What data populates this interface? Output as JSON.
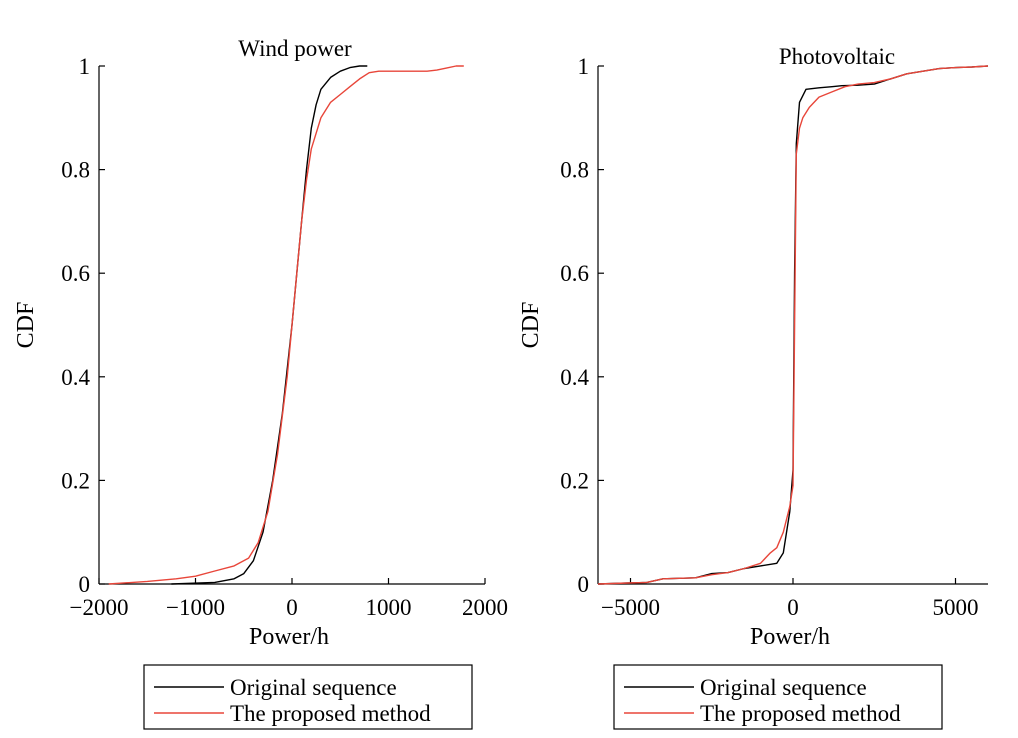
{
  "chart_data": [
    {
      "type": "line",
      "title": "Wind power",
      "xlabel": "Power/h",
      "ylabel": "CDF",
      "xlim": [
        -2000,
        2000
      ],
      "ylim": [
        0,
        1
      ],
      "xticks": [
        -2000,
        -1000,
        0,
        1000,
        2000
      ],
      "xtick_labels": [
        "−2000",
        "−1000",
        "0",
        "1000",
        "2000"
      ],
      "yticks": [
        0,
        0.2,
        0.4,
        0.6,
        0.8,
        1
      ],
      "ytick_labels": [
        "0",
        "0.2",
        "0.4",
        "0.6",
        "0.8",
        "1"
      ],
      "grid": false,
      "legend_position": "bottom",
      "series": [
        {
          "name": "Original sequence",
          "color": "#000000",
          "x": [
            -1250,
            -800,
            -600,
            -500,
            -400,
            -300,
            -200,
            -100,
            0,
            50,
            100,
            150,
            200,
            250,
            300,
            400,
            500,
            600,
            700,
            780
          ],
          "y": [
            0,
            0.003,
            0.01,
            0.02,
            0.045,
            0.1,
            0.2,
            0.33,
            0.5,
            0.6,
            0.7,
            0.8,
            0.88,
            0.925,
            0.955,
            0.978,
            0.99,
            0.997,
            1,
            1
          ]
        },
        {
          "name": "The proposed method",
          "color": "#e8463a",
          "x": [
            -1900,
            -1500,
            -1200,
            -1000,
            -800,
            -600,
            -450,
            -350,
            -250,
            -150,
            -50,
            0,
            50,
            100,
            150,
            200,
            300,
            400,
            500,
            600,
            700,
            800,
            900,
            1000,
            1200,
            1400,
            1500,
            1600,
            1700,
            1780
          ],
          "y": [
            0,
            0.005,
            0.01,
            0.015,
            0.025,
            0.035,
            0.05,
            0.08,
            0.14,
            0.25,
            0.4,
            0.5,
            0.6,
            0.7,
            0.78,
            0.84,
            0.9,
            0.93,
            0.945,
            0.96,
            0.975,
            0.987,
            0.99,
            0.99,
            0.99,
            0.99,
            0.992,
            0.996,
            1,
            1
          ]
        }
      ]
    },
    {
      "type": "line",
      "title": "Photovoltaic",
      "xlabel": "Power/h",
      "ylabel": "CDF",
      "xlim": [
        -6000,
        6000
      ],
      "ylim": [
        0,
        1
      ],
      "xticks": [
        -5000,
        0,
        5000
      ],
      "xtick_labels": [
        "−5000",
        "0",
        "5000"
      ],
      "yticks": [
        0,
        0.2,
        0.4,
        0.6,
        0.8,
        1
      ],
      "ytick_labels": [
        "0",
        "0.2",
        "0.4",
        "0.6",
        "0.8",
        "1"
      ],
      "grid": false,
      "legend_position": "bottom",
      "series": [
        {
          "name": "Original sequence",
          "color": "#000000",
          "x": [
            -6000,
            -4500,
            -4000,
            -3000,
            -2500,
            -2000,
            -1500,
            -1000,
            -500,
            -300,
            -100,
            0,
            50,
            100,
            200,
            400,
            800,
            1200,
            1500,
            2000,
            2500,
            3000,
            3500,
            4000,
            4500,
            5000,
            5500,
            6000
          ],
          "y": [
            0,
            0.003,
            0.01,
            0.012,
            0.02,
            0.022,
            0.03,
            0.035,
            0.04,
            0.06,
            0.14,
            0.22,
            0.6,
            0.85,
            0.93,
            0.955,
            0.958,
            0.96,
            0.962,
            0.963,
            0.965,
            0.975,
            0.985,
            0.99,
            0.995,
            0.997,
            0.998,
            1
          ]
        },
        {
          "name": "The proposed method",
          "color": "#e8463a",
          "x": [
            -6000,
            -4500,
            -4000,
            -3000,
            -2500,
            -2000,
            -1500,
            -1000,
            -700,
            -500,
            -300,
            -100,
            0,
            50,
            100,
            200,
            300,
            500,
            800,
            1200,
            1600,
            2000,
            2500,
            3000,
            3500,
            4000,
            4500,
            5000,
            5500,
            6000
          ],
          "y": [
            0,
            0.003,
            0.01,
            0.012,
            0.018,
            0.022,
            0.03,
            0.04,
            0.06,
            0.07,
            0.1,
            0.15,
            0.19,
            0.5,
            0.83,
            0.88,
            0.9,
            0.92,
            0.94,
            0.95,
            0.96,
            0.965,
            0.968,
            0.975,
            0.985,
            0.99,
            0.995,
            0.997,
            0.998,
            1
          ]
        }
      ]
    }
  ]
}
